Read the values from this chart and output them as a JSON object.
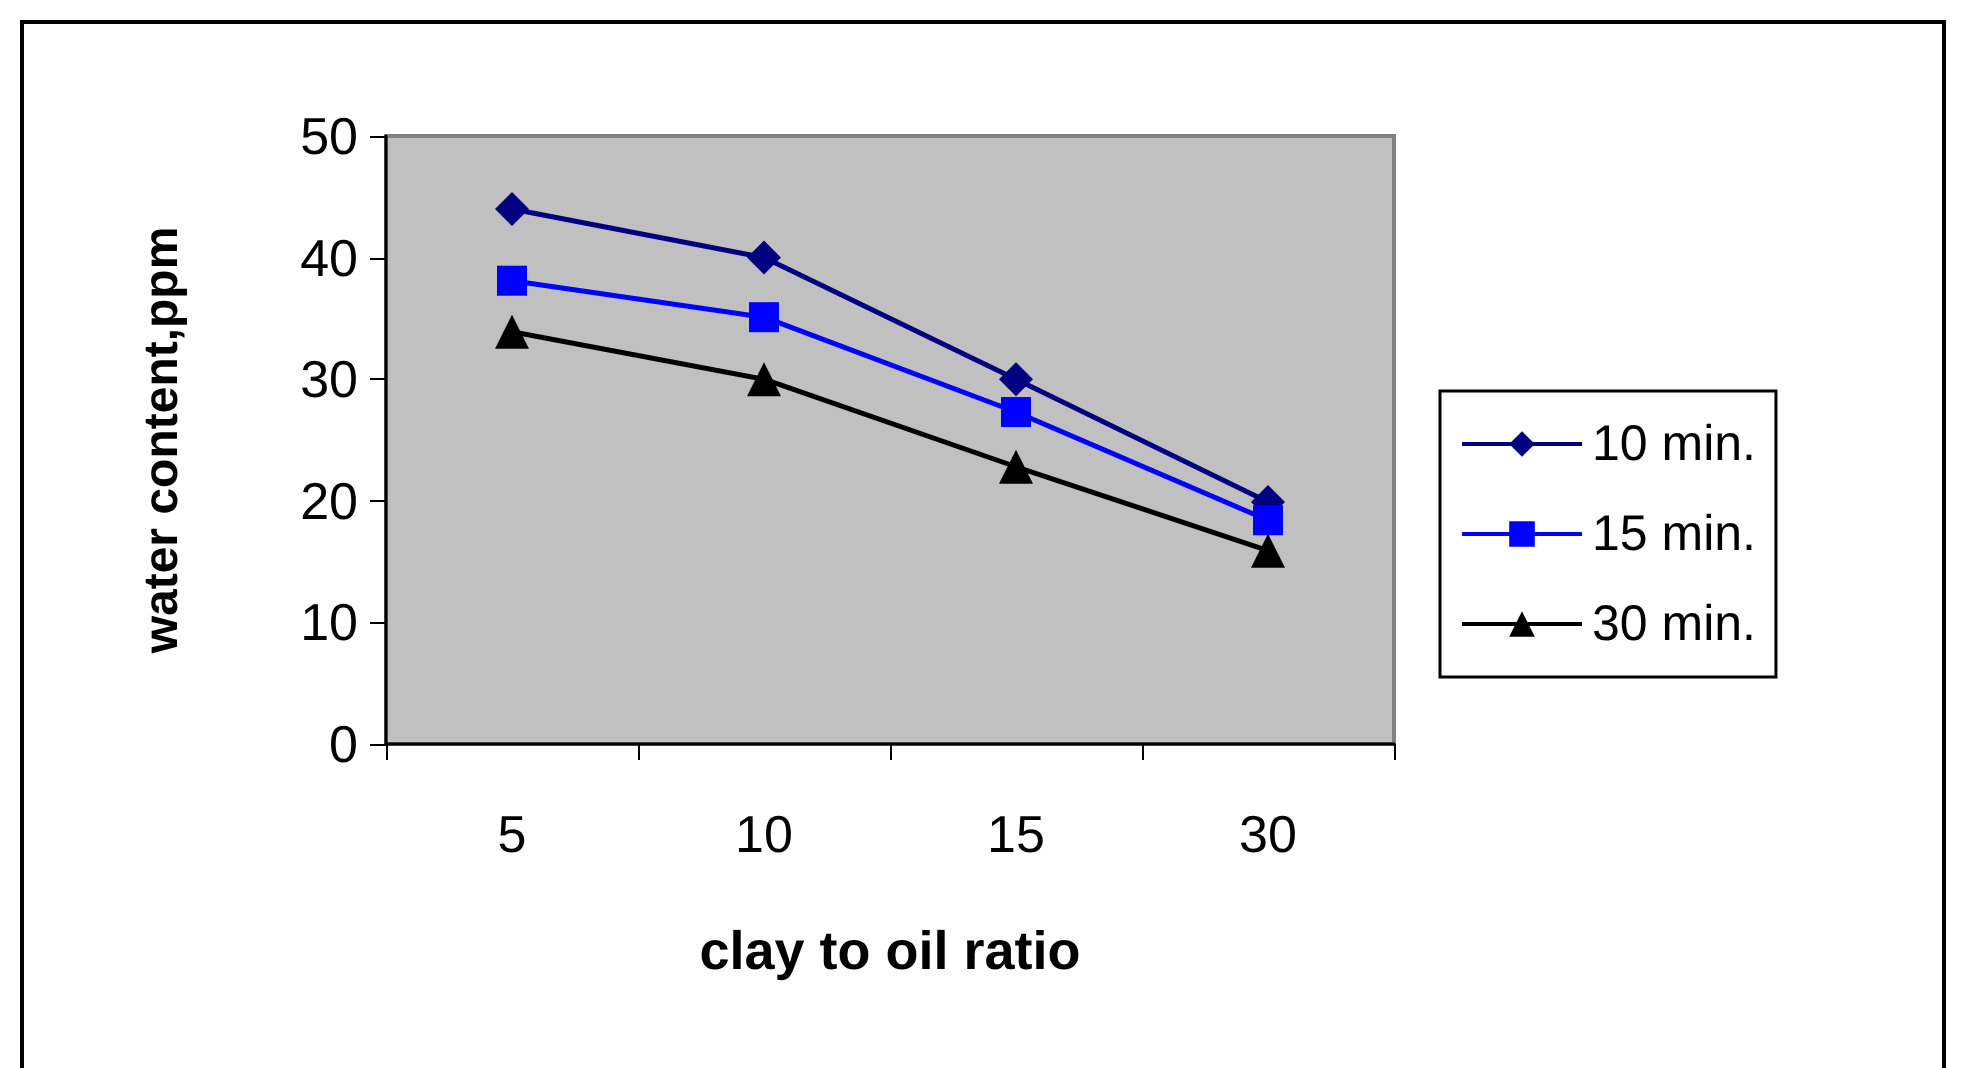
{
  "chart_data": {
    "type": "line",
    "xlabel": "clay to oil ratio",
    "ylabel": "water content,ppm",
    "categories": [
      "5",
      "10",
      "15",
      "30"
    ],
    "series": [
      {
        "name": "10 min.",
        "color": "#000080",
        "marker": "diamond",
        "values": [
          44,
          40,
          30,
          19.9
        ]
      },
      {
        "name": "15 min.",
        "color": "#0000ff",
        "marker": "square",
        "values": [
          38.1,
          35.1,
          27.3,
          18.4
        ]
      },
      {
        "name": "30 min.",
        "color": "#000000",
        "marker": "triangle",
        "values": [
          33.9,
          30,
          22.8,
          15.9
        ]
      }
    ],
    "ylim": [
      0,
      50
    ],
    "yticks": [
      0,
      10,
      20,
      30,
      40,
      50
    ],
    "grid": false,
    "legend": "right"
  }
}
